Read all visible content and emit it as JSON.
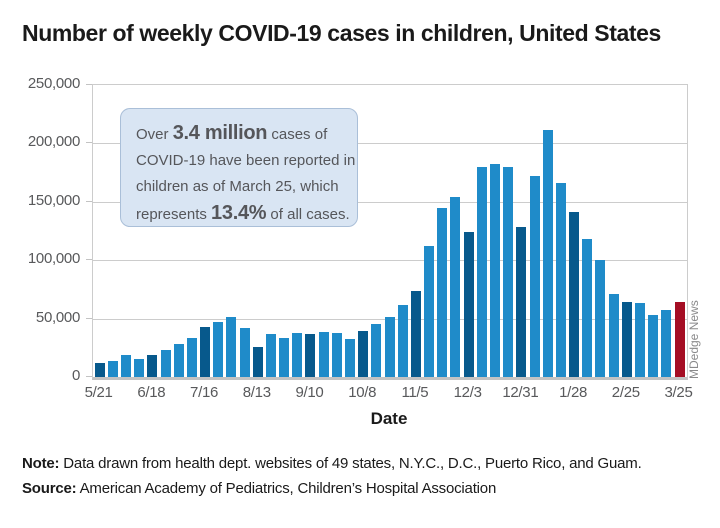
{
  "page": {
    "title": "Number of weekly COVID-19 cases in children, United States",
    "watermark": "MDedge News",
    "footer": {
      "note_label": "Note:",
      "note_text": "Data drawn from health dept. websites of 49 states, N.Y.C., D.C., Puerto Rico, and Guam.",
      "source_label": "Source:",
      "source_text": "American Academy of Pediatrics, Children’s Hospital Association"
    }
  },
  "annotation": {
    "lines": [
      [
        {
          "t": "Over ",
          "b": false
        },
        {
          "t": "3.4 million",
          "b": true
        },
        {
          "t": " cases of",
          "b": false
        }
      ],
      [
        {
          "t": "COVID-19 have been reported in",
          "b": false
        }
      ],
      [
        {
          "t": "children as of March 25, which",
          "b": false
        }
      ],
      [
        {
          "t": "represents ",
          "b": false
        },
        {
          "t": "13.4%",
          "b": true
        },
        {
          "t": " of all cases.",
          "b": false
        }
      ]
    ]
  },
  "chart_data": {
    "type": "bar",
    "title": "Number of weekly COVID-19 cases in children, United States",
    "xlabel": "Date",
    "ylabel": "",
    "ylim": [
      0,
      250000
    ],
    "grid": true,
    "y_tick_values": [
      250000,
      200000,
      150000,
      100000,
      50000,
      0
    ],
    "y_tick_labels": [
      "250,000",
      "200,000",
      "150,000",
      "100,000",
      "50,000",
      "0"
    ],
    "x_tick_labels": [
      "5/21",
      "6/18",
      "7/16",
      "8/13",
      "9/10",
      "10/8",
      "11/5",
      "12/3",
      "12/31",
      "1/28",
      "2/25",
      "3/25"
    ],
    "x_tick_every": 4,
    "values": [
      12000,
      14000,
      18500,
      15000,
      18500,
      23000,
      28500,
      33000,
      43000,
      47500,
      51500,
      42000,
      26000,
      37000,
      33500,
      37500,
      36500,
      38500,
      37500,
      32500,
      39500,
      45000,
      51000,
      62000,
      74000,
      112000,
      144500,
      154000,
      124000,
      179500,
      182500,
      180000,
      128500,
      172000,
      211500,
      166000,
      141000,
      118500,
      100000,
      71000,
      64500,
      63500,
      53500,
      57500,
      64000
    ],
    "colors": {
      "bar_default": "#1f8bc9",
      "bar_tick": "#07598c",
      "bar_final": "#a50e24",
      "grid": "#cccccc",
      "axis": "#c3c3c3",
      "tick_text": "#58595b",
      "annotation_bg": "#d9e5f3",
      "annotation_border": "#aabfd8",
      "annotation_text": "#55565a"
    }
  }
}
